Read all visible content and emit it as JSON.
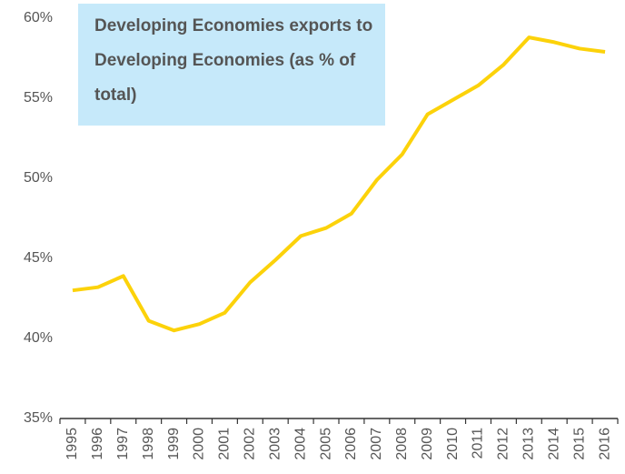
{
  "chart_data": {
    "type": "line",
    "title": "Developing Economies exports to Developing Economies (as % of total)",
    "categories": [
      "1995",
      "1996",
      "1997",
      "1998",
      "1999",
      "2000",
      "2001",
      "2002",
      "2003",
      "2004",
      "2005",
      "2006",
      "2007",
      "2008",
      "2009",
      "2010",
      "2011",
      "2012",
      "2013",
      "2014",
      "2015",
      "2016"
    ],
    "series": [
      {
        "color": "#fcd20a",
        "values": [
          43.0,
          43.2,
          43.9,
          41.1,
          40.5,
          40.9,
          41.6,
          43.5,
          44.9,
          46.4,
          46.9,
          47.8,
          49.9,
          51.5,
          54.0,
          54.9,
          55.8,
          57.1,
          58.8,
          58.5,
          58.1,
          57.9
        ]
      }
    ],
    "ylim": [
      35,
      60
    ],
    "yticks": [
      {
        "value": 35,
        "label": "35%"
      },
      {
        "value": 40,
        "label": "40%"
      },
      {
        "value": 45,
        "label": "45%"
      },
      {
        "value": 50,
        "label": "50%"
      },
      {
        "value": 55,
        "label": "55%"
      },
      {
        "value": 60,
        "label": "60%"
      }
    ],
    "grid": false
  }
}
